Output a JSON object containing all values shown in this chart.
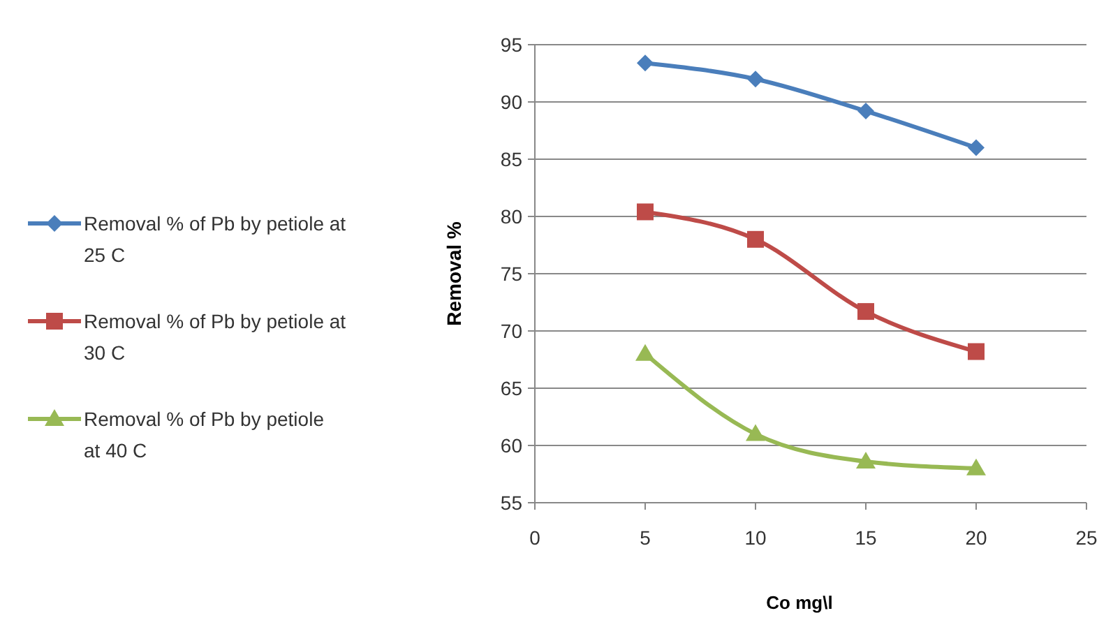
{
  "chart_data": {
    "type": "line",
    "xlabel": "Co mg\\l",
    "ylabel": "Removal %",
    "x": [
      5,
      10,
      15,
      20
    ],
    "series": [
      {
        "name": "Removal % of Pb by petiole at 25 C",
        "color": "#4a7ebb",
        "values": [
          93.4,
          92,
          89.2,
          86
        ],
        "marker": "diamond"
      },
      {
        "name": "Removal % of Pb by petiole at 30 C",
        "color": "#be4b48",
        "values": [
          80.4,
          78,
          71.7,
          68.2
        ],
        "marker": "square"
      },
      {
        "name": "Removal  % of Pb by petiole at 40 C",
        "color": "#98b954",
        "values": [
          68,
          61,
          58.6,
          58
        ],
        "marker": "triangle"
      }
    ],
    "xlim": [
      0,
      25
    ],
    "xticks": [
      0,
      5,
      10,
      15,
      20,
      25
    ],
    "ylim": [
      55,
      95
    ],
    "yticks": [
      55,
      60,
      65,
      70,
      75,
      80,
      85,
      90,
      95
    ],
    "grid": "y",
    "legend": "left"
  }
}
